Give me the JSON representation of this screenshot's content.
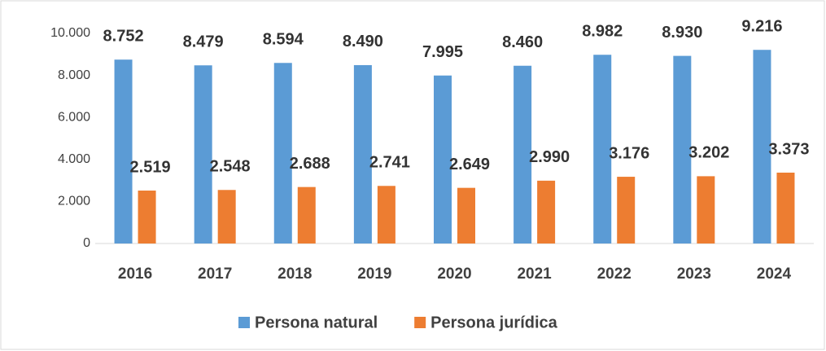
{
  "chart_data": {
    "type": "bar",
    "categories": [
      "2016",
      "2017",
      "2018",
      "2019",
      "2020",
      "2021",
      "2022",
      "2023",
      "2024"
    ],
    "series": [
      {
        "name": "Persona natural",
        "color": "#5b9bd5",
        "values": [
          8752,
          8479,
          8594,
          8490,
          7995,
          8460,
          8982,
          8930,
          9216
        ],
        "value_labels": [
          "8.752",
          "8.479",
          "8.594",
          "8.490",
          "7.995",
          "8.460",
          "8.982",
          "8.930",
          "9.216"
        ]
      },
      {
        "name": "Persona jurídica",
        "color": "#ed7d31",
        "values": [
          2519,
          2548,
          2688,
          2741,
          2649,
          2990,
          3176,
          3202,
          3373
        ],
        "value_labels": [
          "2.519",
          "2.548",
          "2.688",
          "2.741",
          "2.649",
          "2.990",
          "3.176",
          "3.202",
          "3.373"
        ]
      }
    ],
    "ylim": [
      0,
      10000
    ],
    "yticks": [
      0,
      {
        "value": 2000,
        "label": "2.000"
      },
      {
        "value": 4000,
        "label": "4.000"
      },
      {
        "value": 6000,
        "label": "6.000"
      },
      {
        "value": 8000,
        "label": "8.000"
      },
      {
        "value": 10000,
        "label": "10.000"
      }
    ],
    "grid": false,
    "legend": "bottom"
  }
}
